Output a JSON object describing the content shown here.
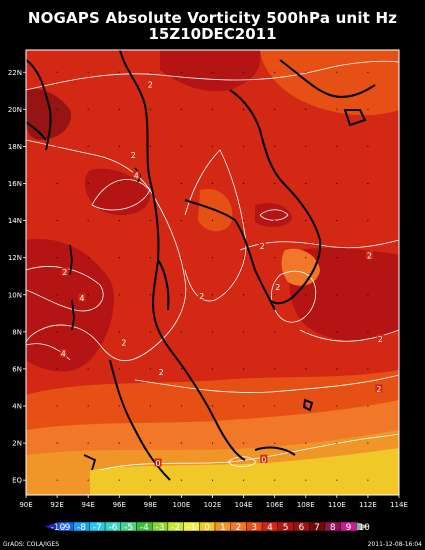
{
  "title_line1": "NOGAPS Absolute Vorticity 500hPa unit Hz",
  "title_line2": "15Z10DEC2011",
  "lat_ticks": [
    "22N",
    "20N",
    "18N",
    "16N",
    "14N",
    "12N",
    "10N",
    "8N",
    "6N",
    "4N",
    "2N",
    "EQ"
  ],
  "lon_ticks": [
    "90E",
    "92E",
    "94E",
    "96E",
    "98E",
    "100E",
    "102E",
    "104E",
    "106E",
    "108E",
    "110E",
    "112E",
    "114E"
  ],
  "map_extent": {
    "lon_min": 90,
    "lon_max": 114,
    "lat_min": -0.8,
    "lat_max": 23.2
  },
  "contour_labels": [
    {
      "text": "2",
      "lon": 98.0,
      "lat": 21.3
    },
    {
      "text": "2",
      "lon": 96.9,
      "lat": 17.5
    },
    {
      "text": "4",
      "lon": 97.1,
      "lat": 16.4
    },
    {
      "text": "2",
      "lon": 105.2,
      "lat": 12.6
    },
    {
      "text": "2",
      "lon": 112.1,
      "lat": 12.1
    },
    {
      "text": "2",
      "lon": 92.5,
      "lat": 11.2
    },
    {
      "text": "4",
      "lon": 93.6,
      "lat": 9.8
    },
    {
      "text": "2",
      "lon": 101.3,
      "lat": 9.9
    },
    {
      "text": "2",
      "lon": 106.2,
      "lat": 10.4
    },
    {
      "text": "2",
      "lon": 96.3,
      "lat": 7.4
    },
    {
      "text": "4",
      "lon": 92.4,
      "lat": 6.8
    },
    {
      "text": "2",
      "lon": 112.8,
      "lat": 7.6
    },
    {
      "text": "2",
      "lon": 98.7,
      "lat": 5.8
    },
    {
      "text": "2",
      "lon": 112.7,
      "lat": 4.9
    },
    {
      "text": "0",
      "lon": 98.5,
      "lat": 0.9
    },
    {
      "text": "0",
      "lon": 105.3,
      "lat": 1.1
    }
  ],
  "colorbar": {
    "labels": [
      "-10",
      "-9",
      "-8",
      "-7",
      "-6",
      "-5",
      "-4",
      "-3",
      "-2",
      "-1",
      "0",
      "1",
      "2",
      "3",
      "4",
      "5",
      "6",
      "7",
      "8",
      "9",
      "10"
    ],
    "colors": [
      "#1c28c8",
      "#1e64e6",
      "#1ea0f0",
      "#28c8f0",
      "#3cd2c8",
      "#50d28c",
      "#3cbe3c",
      "#8cd232",
      "#c8e632",
      "#f0f050",
      "#f0c828",
      "#f09628",
      "#f07828",
      "#e65014",
      "#d22814",
      "#b41414",
      "#961414",
      "#6e0a0a",
      "#8c1450",
      "#c81e8c",
      "#a0a0a0"
    ]
  },
  "colors": {
    "field_main": "#d22814",
    "field_weak": "#e65014",
    "field_low": "#f07828",
    "field_lower": "#f09628",
    "field_min": "#f0c828",
    "field_high": "#b41414",
    "field_higher": "#961414"
  },
  "credit_left": "GrADS: COLA/IGES",
  "credit_right": "2011-12-08-16:04"
}
